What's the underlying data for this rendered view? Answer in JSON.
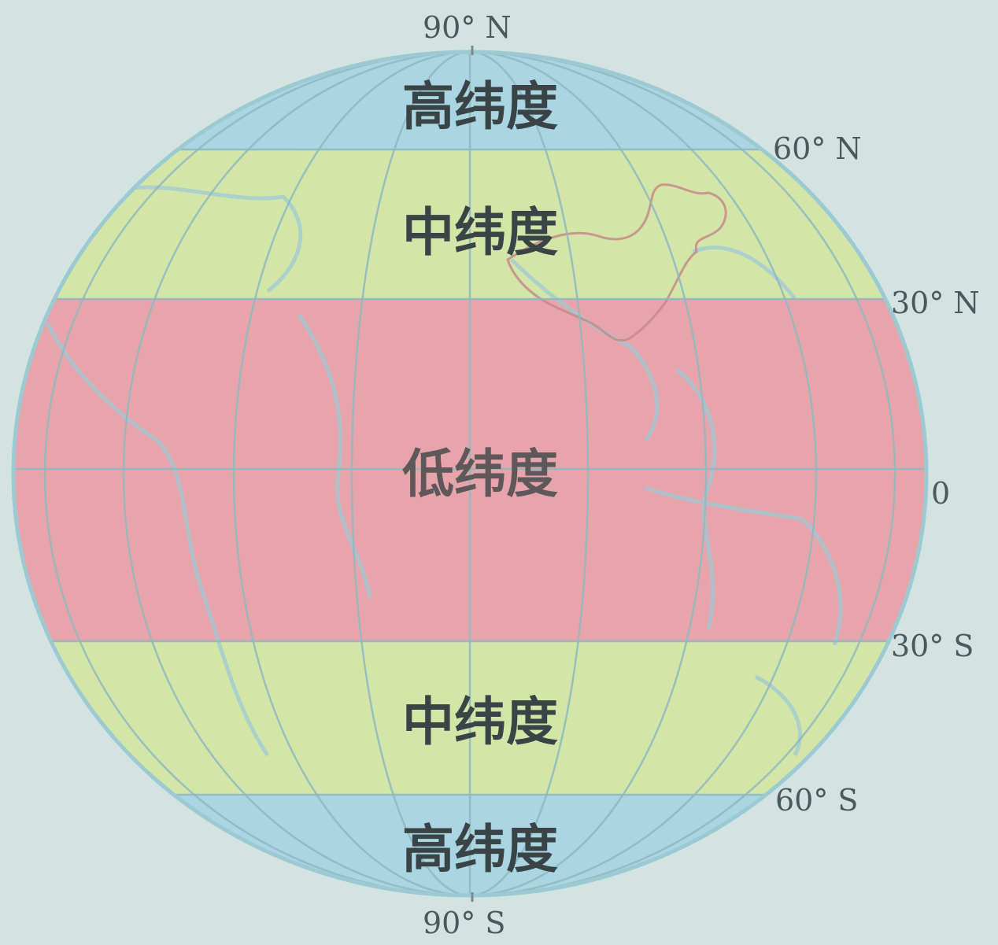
{
  "latitude_labels": {
    "n90": "90° N",
    "n60": "60° N",
    "n30": "30° N",
    "eq": "0",
    "s30": "30° S",
    "s60": "60° S",
    "s90": "90° S"
  },
  "zones": {
    "high_north": "高纬度",
    "mid_north": "中纬度",
    "low": "低纬度",
    "mid_south": "中纬度",
    "high_south": "高纬度"
  },
  "colors": {
    "background": "#d3e3e2",
    "high_latitude": "#a9d6e2",
    "mid_latitude": "#d3e6a8",
    "low_latitude": "#e7a5ab",
    "grid_line": "#8fb9c1",
    "coastline": "#9ec9d6",
    "china_border": "#c58a8a",
    "globe_outline": "#9ccad3"
  }
}
